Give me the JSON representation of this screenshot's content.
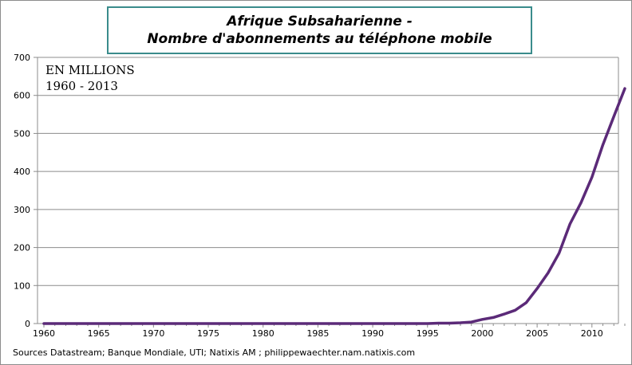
{
  "chart_data": {
    "type": "line",
    "title_line1": "Afrique Subsaharienne -",
    "title_line2": "Nombre d'abonnements au téléphone mobile",
    "annotation_line1": "EN MILLIONS",
    "annotation_line2": "1960 - 2013",
    "source": "Sources Datastream; Banque Mondiale, UTI; Natixis AM ; philippewaechter.nam.natixis.com",
    "xlim": [
      1960,
      2013
    ],
    "ylim": [
      0,
      700
    ],
    "y_ticks": [
      0,
      100,
      200,
      300,
      400,
      500,
      600,
      700
    ],
    "x_ticks": [
      1960,
      1965,
      1970,
      1975,
      1980,
      1985,
      1990,
      1995,
      2000,
      2005,
      2010
    ],
    "grid": true,
    "line_color": "#5b2a78",
    "series": [
      {
        "x": [
          1960,
          1970,
          1980,
          1990,
          1995,
          1996,
          1997,
          1998,
          1999,
          2000,
          2001,
          2002,
          2003,
          2004,
          2005,
          2006,
          2007,
          2008,
          2009,
          2010,
          2011,
          2012,
          2013
        ],
        "values": [
          0,
          0,
          0,
          0,
          0,
          1,
          1,
          2,
          4,
          11,
          16,
          25,
          35,
          55,
          92,
          133,
          185,
          262,
          318,
          385,
          470,
          545,
          618
        ]
      }
    ]
  }
}
